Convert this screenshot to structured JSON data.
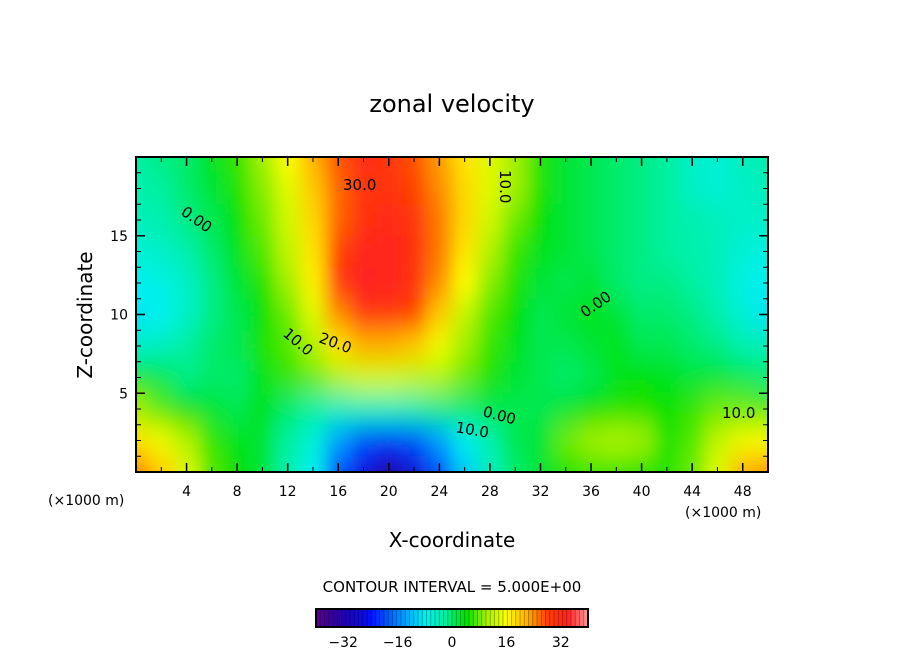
{
  "chart_data": {
    "type": "heatmap",
    "title": "zonal velocity",
    "xlabel": "X-coordinate",
    "ylabel": "Z-coordinate",
    "x_unit_label_left": "(×1000 m)",
    "x_unit_label_right": "(×1000 m)",
    "xlim": [
      0,
      50
    ],
    "ylim": [
      0,
      20
    ],
    "x_ticks": [
      4,
      8,
      12,
      16,
      20,
      24,
      28,
      32,
      36,
      40,
      44,
      48
    ],
    "y_ticks": [
      5,
      10,
      15
    ],
    "contour_interval_label": "CONTOUR INTERVAL = 5.000E+00",
    "contour_labels": [
      "30.0",
      "0.00",
      "10.0",
      "20.0",
      "10.0",
      "0.00",
      "10.0",
      "0.00",
      "10.0",
      "0.00"
    ],
    "colorbar": {
      "range": [
        -40,
        40
      ],
      "ticks": [
        -32,
        -16,
        0,
        16,
        32
      ],
      "tick_labels": [
        "−32",
        "−16",
        "0",
        "16",
        "32"
      ]
    },
    "grid_x": [
      0,
      2,
      4,
      6,
      8,
      10,
      12,
      14,
      16,
      18,
      20,
      22,
      24,
      26,
      28,
      30,
      32,
      34,
      36,
      38,
      40,
      42,
      44,
      46,
      48,
      50
    ],
    "grid_z": [
      20,
      18,
      16,
      14,
      12,
      10,
      8,
      6,
      4,
      2,
      0
    ],
    "values": [
      [
        -2,
        -1,
        0,
        3,
        6,
        10,
        16,
        22,
        27,
        32,
        30,
        27,
        23,
        18,
        14,
        10,
        5,
        2,
        1,
        0,
        -1,
        -2,
        -5,
        -6,
        -4,
        -3
      ],
      [
        -3,
        -2,
        0,
        2,
        5,
        9,
        14,
        20,
        26,
        30,
        30,
        28,
        24,
        19,
        14,
        10,
        5,
        2,
        1,
        0,
        -1,
        -2,
        -5,
        -6,
        -5,
        -4
      ],
      [
        -4,
        -3,
        -1,
        1,
        4,
        8,
        13,
        19,
        26,
        31,
        32,
        30,
        25,
        19,
        13,
        8,
        4,
        2,
        1,
        0,
        -1,
        -2,
        -3,
        -4,
        -5,
        -5
      ],
      [
        -6,
        -5,
        -3,
        0,
        3,
        7,
        12,
        18,
        28,
        33,
        33,
        31,
        25,
        18,
        11,
        6,
        3,
        2,
        1,
        0,
        -1,
        -2,
        -3,
        -4,
        -6,
        -7
      ],
      [
        -8,
        -7,
        -5,
        -1,
        2,
        5,
        10,
        17,
        30,
        34,
        33,
        31,
        24,
        16,
        9,
        5,
        2,
        1,
        2,
        0,
        -1,
        -1,
        -2,
        -4,
        -7,
        -8
      ],
      [
        -9,
        -8,
        -5,
        -1,
        1,
        4,
        8,
        14,
        24,
        30,
        30,
        28,
        20,
        12,
        7,
        4,
        1,
        2,
        3,
        2,
        0,
        0,
        -1,
        -3,
        -6,
        -9
      ],
      [
        -5,
        -4,
        -2,
        0,
        1,
        5,
        7,
        11,
        18,
        22,
        22,
        20,
        15,
        10,
        6,
        3,
        1,
        1,
        2,
        3,
        1,
        1,
        0,
        -1,
        -3,
        -4
      ],
      [
        3,
        1,
        -1,
        0,
        0,
        3,
        6,
        8,
        11,
        13,
        13,
        12,
        11,
        8,
        5,
        2,
        1,
        0,
        1,
        3,
        4,
        3,
        2,
        2,
        1,
        0
      ],
      [
        10,
        7,
        4,
        2,
        1,
        3,
        0,
        -2,
        -4,
        -4,
        -4,
        -3,
        -1,
        0,
        1,
        1,
        1,
        2,
        4,
        5,
        5,
        4,
        6,
        8,
        8,
        7
      ],
      [
        18,
        15,
        11,
        6,
        3,
        2,
        -2,
        -6,
        -14,
        -20,
        -22,
        -20,
        -14,
        -8,
        -3,
        1,
        2,
        8,
        10,
        11,
        10,
        5,
        7,
        12,
        15,
        16
      ],
      [
        25,
        20,
        14,
        7,
        4,
        2,
        -3,
        -8,
        -20,
        -27,
        -32,
        -28,
        -20,
        -11,
        -4,
        0,
        2,
        5,
        6,
        6,
        5,
        5,
        8,
        14,
        22,
        24
      ]
    ],
    "colors": {
      "stops": [
        [
          -40,
          "#5a0090"
        ],
        [
          -32,
          "#2000a8"
        ],
        [
          -24,
          "#0010ff"
        ],
        [
          -14,
          "#00a0ff"
        ],
        [
          -8,
          "#00f0f0"
        ],
        [
          -2,
          "#00f0a0"
        ],
        [
          4,
          "#00e000"
        ],
        [
          10,
          "#a0f000"
        ],
        [
          16,
          "#ffff00"
        ],
        [
          22,
          "#ffb000"
        ],
        [
          28,
          "#ff4000"
        ],
        [
          34,
          "#ff2020"
        ],
        [
          40,
          "#ff9898"
        ]
      ]
    }
  }
}
